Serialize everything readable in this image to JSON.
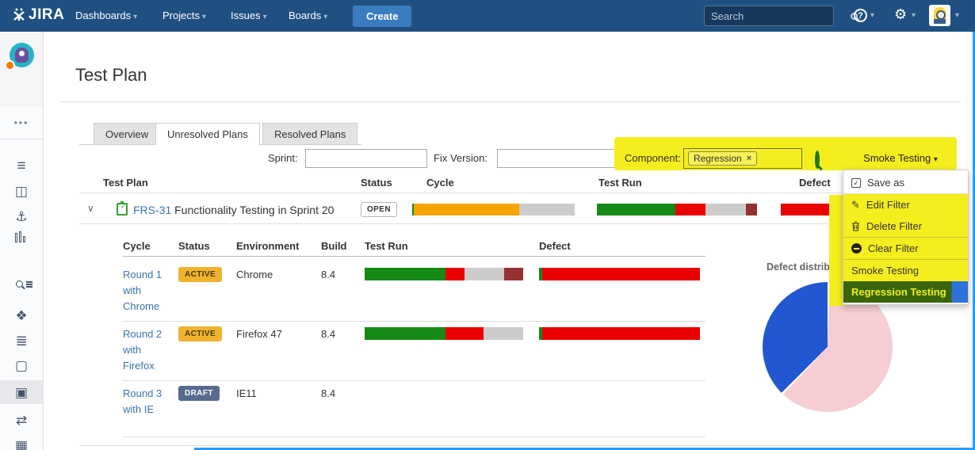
{
  "topnav": {
    "logo": "JIRA",
    "items": [
      {
        "label": "Dashboards"
      },
      {
        "label": "Projects"
      },
      {
        "label": "Issues"
      },
      {
        "label": "Boards"
      }
    ],
    "create_label": "Create",
    "search_placeholder": "Search"
  },
  "page": {
    "title": "Test Plan"
  },
  "tabs": [
    {
      "label": "Overview"
    },
    {
      "label": "Unresolved Plans"
    },
    {
      "label": "Resolved Plans"
    }
  ],
  "filters": {
    "sprint_label": "Sprint:",
    "sprint_value": "",
    "fix_version_label": "Fix Version:",
    "fix_version_value": "",
    "component_label": "Component:",
    "component_tag": "Regression",
    "component_tag_remove": "×",
    "filter_button_label": "Smoke Testing"
  },
  "menu": {
    "items": [
      {
        "label": "Save as"
      },
      {
        "label": "Edit Filter"
      },
      {
        "label": "Delete Filter"
      },
      {
        "label": "Clear Filter"
      },
      {
        "label": "Smoke Testing"
      },
      {
        "label": "Regression Testing"
      }
    ]
  },
  "plan_table": {
    "headers": {
      "plan": "Test Plan",
      "status": "Status",
      "cycle": "Cycle",
      "test_run": "Test Run",
      "defect": "Defect"
    },
    "row": {
      "key": "FRS-31",
      "summary": " Functionality Testing in Sprint 20",
      "status": "OPEN",
      "cycle_bar": [
        {
          "c": "#168a16",
          "p": 1
        },
        {
          "c": "#f7a400",
          "p": 65
        },
        {
          "c": "#cccccc",
          "p": 34
        }
      ],
      "test_run_bar": [
        {
          "c": "#168a16",
          "p": 49
        },
        {
          "c": "#ea0000",
          "p": 19
        },
        {
          "c": "#cccccc",
          "p": 25
        },
        {
          "c": "#963131",
          "p": 7
        }
      ],
      "defect_bar": [
        {
          "c": "#ea0000",
          "p": 100
        }
      ]
    }
  },
  "cycle_table": {
    "headers": {
      "cycle": "Cycle",
      "status": "Status",
      "environment": "Environment",
      "build": "Build",
      "test_run": "Test Run",
      "defect": "Defect"
    },
    "rows": [
      {
        "cycle": "Round 1 with Chrome",
        "status": "ACTIVE",
        "environment": "Chrome",
        "build": "8.4",
        "test_run_bar": [
          {
            "c": "#168a16",
            "p": 51
          },
          {
            "c": "#ea0000",
            "p": 12
          },
          {
            "c": "#cccccc",
            "p": 25
          },
          {
            "c": "#963131",
            "p": 12
          }
        ],
        "defect_bar": [
          {
            "c": "#168a16",
            "p": 2
          },
          {
            "c": "#ea0000",
            "p": 98
          }
        ]
      },
      {
        "cycle": "Round 2 with Firefox",
        "status": "ACTIVE",
        "environment": "Firefox 47",
        "build": "8.4",
        "test_run_bar": [
          {
            "c": "#168a16",
            "p": 51
          },
          {
            "c": "#ea0000",
            "p": 24
          },
          {
            "c": "#cccccc",
            "p": 25
          }
        ],
        "defect_bar": [
          {
            "c": "#168a16",
            "p": 2
          },
          {
            "c": "#ea0000",
            "p": 98
          }
        ]
      },
      {
        "cycle": "Round 3 with IE",
        "status": "DRAFT",
        "environment": "IE11",
        "build": "8.4",
        "test_run_bar": [],
        "defect_bar": []
      }
    ]
  },
  "badge_colors": {
    "OPEN": {
      "bg": "#ffffff",
      "fg": "#333333",
      "border": "#b7b7b7"
    },
    "ACTIVE": {
      "bg": "#f0b32e",
      "fg": "#4a3b00",
      "border": "#f0b32e"
    },
    "DRAFT": {
      "bg": "#566b8f",
      "fg": "#ffffff",
      "border": "#566b8f"
    }
  },
  "chart_data": {
    "type": "pie",
    "title": "Defect distribution",
    "values": [
      62,
      38
    ],
    "colors": [
      "#f5cdd2",
      "#2257d2"
    ],
    "legend": "none"
  }
}
